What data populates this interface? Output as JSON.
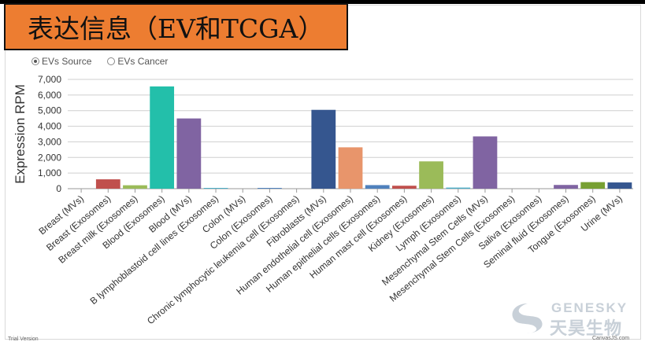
{
  "banner": {
    "title": "表达信息（EV和TCGA）",
    "color": "#ed7d31"
  },
  "toggle": {
    "options": [
      {
        "label": "EVs Source",
        "selected": true
      },
      {
        "label": "EVs Cancer",
        "selected": false
      }
    ]
  },
  "footer": {
    "trial": "Trial Version",
    "credit": "CanvasJS.com"
  },
  "logo": {
    "name_en": "GENESKY",
    "name_cn": "天昊生物"
  },
  "chart_data": {
    "type": "bar",
    "ylabel": "Expression RPM",
    "xlabel": "",
    "ylim": [
      0,
      7000
    ],
    "yticks": [
      0,
      1000,
      2000,
      3000,
      4000,
      5000,
      6000,
      7000
    ],
    "ytick_labels": [
      "0",
      "1,000",
      "2,000",
      "3,000",
      "4,000",
      "5,000",
      "6,000",
      "7,000"
    ],
    "grid": true,
    "categories": [
      "Breast (MVs)",
      "Breast (Exosomes)",
      "Breast milk (Exosomes)",
      "Blood (Exosomes)",
      "Blood (MVs)",
      "B lymphoblastoid cell lines (Exosomes)",
      "Colon (MVs)",
      "Colon (Exosomes)",
      "Chronic lymphocytic leukemia cell (Exosomes)",
      "Fibroblasts (MVs)",
      "Human endothelial cell (Exosomes)",
      "Human epithelial cells (Exosomes)",
      "Human mast cell (Exosomes)",
      "Kidney (Exosomes)",
      "Lymph (Exosomes)",
      "Mesenchymal Stem Cells (MVs)",
      "Mesenchymal Stem Cells (Exosomes)",
      "Saliva (Exosomes)",
      "Seminal fluid (Exosomes)",
      "Tongue (Exosomes)",
      "Urine (MVs)"
    ],
    "values": [
      0,
      600,
      220,
      6550,
      4500,
      30,
      0,
      40,
      0,
      5050,
      2650,
      230,
      190,
      1750,
      70,
      3350,
      0,
      0,
      240,
      420,
      400
    ],
    "colors": [
      "#4f81bd",
      "#c0504d",
      "#9bbb59",
      "#23bfaa",
      "#8064a2",
      "#4bacc6",
      "#f79646",
      "#4f81bd",
      "#c0504d",
      "#35568f",
      "#e8956b",
      "#4f81bd",
      "#c0504d",
      "#9bbb59",
      "#4bacc6",
      "#8064a2",
      "#f79646",
      "#2c4d75",
      "#8064a2",
      "#77a033",
      "#35568f"
    ]
  }
}
